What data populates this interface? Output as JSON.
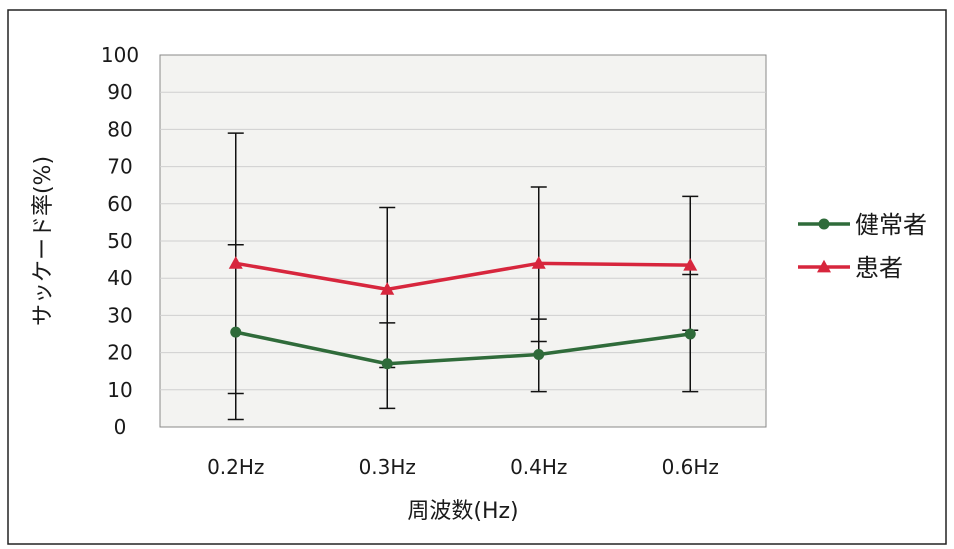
{
  "chart_data": {
    "type": "line",
    "title": "",
    "xlabel": "周波数(Hz)",
    "ylabel": "サッケード率(%)",
    "categories": [
      "0.2Hz",
      "0.3Hz",
      "0.4Hz",
      "0.6Hz"
    ],
    "ylim": [
      0,
      100
    ],
    "yticks": [
      "0",
      "10",
      "20",
      "30",
      "40",
      "50",
      "60",
      "70",
      "80",
      "90",
      "100"
    ],
    "grid": true,
    "legend_position": "right",
    "series": [
      {
        "name": "健常者",
        "color": "#2f6b3a",
        "marker": "circle",
        "values": [
          25.5,
          17,
          19.5,
          25
        ],
        "error_low": [
          2,
          5,
          9.5,
          9.5
        ],
        "error_high": [
          49,
          28,
          29,
          41
        ]
      },
      {
        "name": "患者",
        "color": "#d7263d",
        "marker": "triangle",
        "values": [
          44,
          37,
          44,
          43.5
        ],
        "error_low": [
          9,
          16,
          23,
          26
        ],
        "error_high": [
          79,
          59,
          64.5,
          62
        ]
      }
    ]
  }
}
